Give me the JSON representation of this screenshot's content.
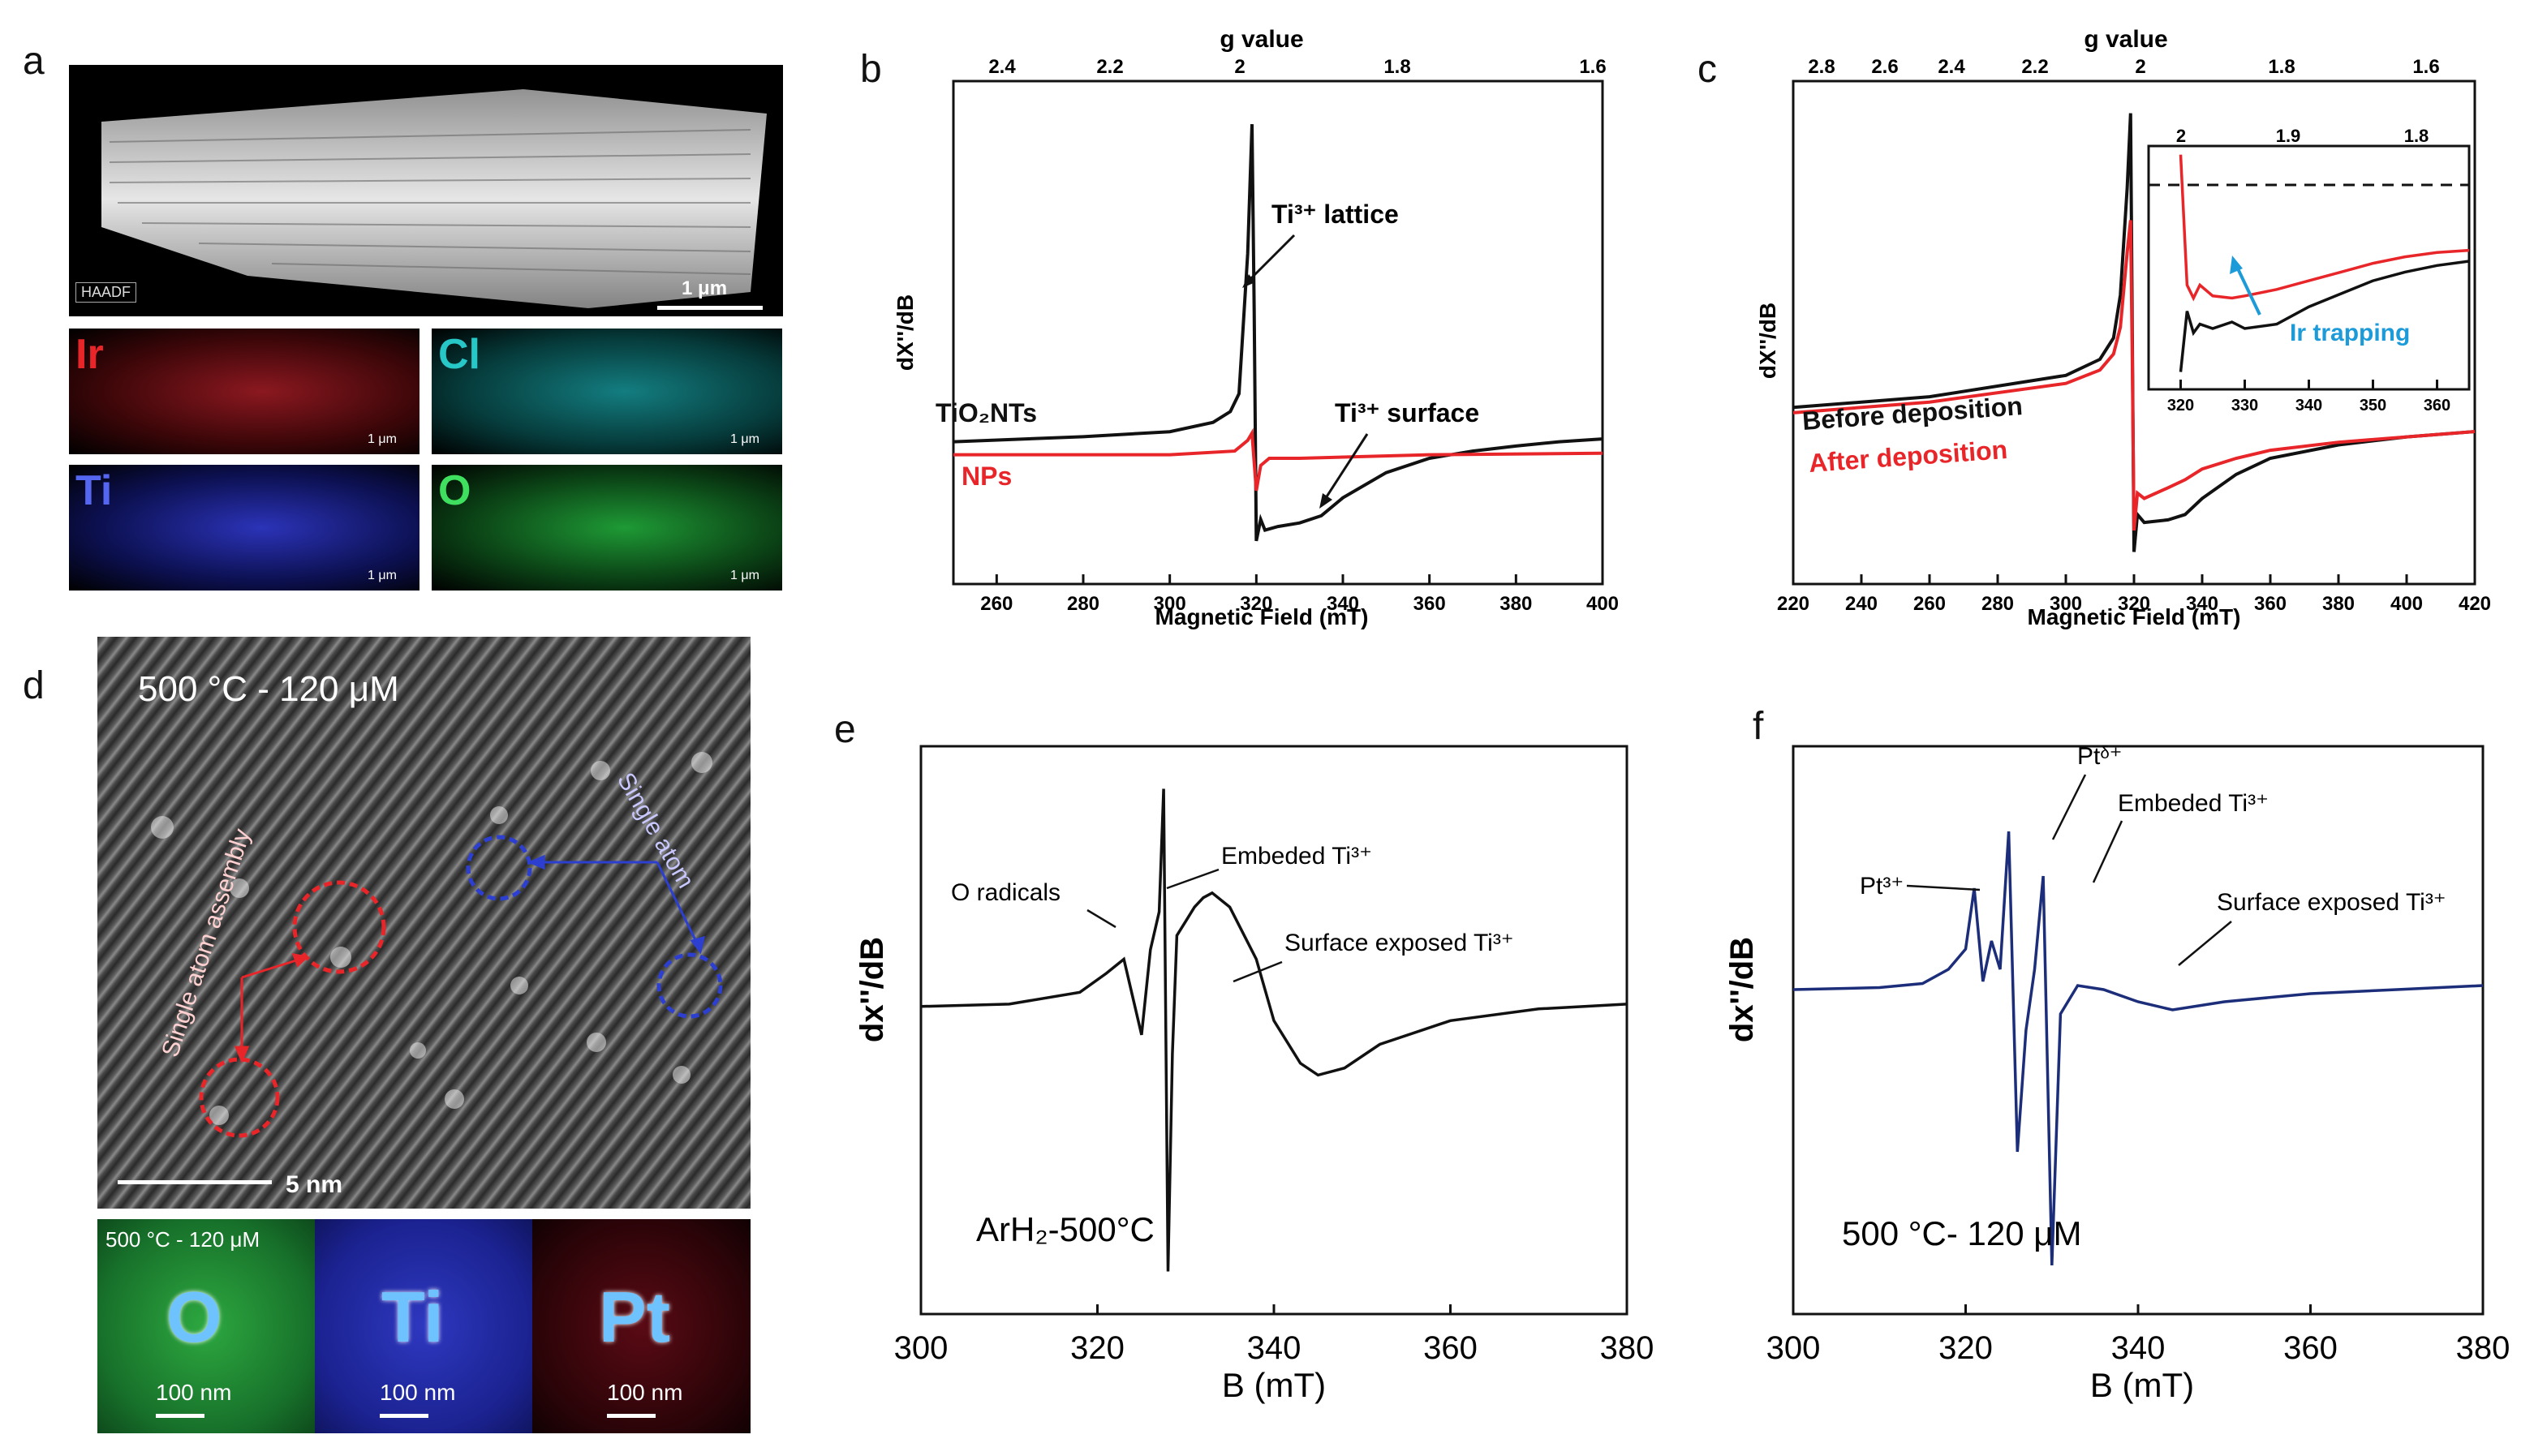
{
  "colors": {
    "black": "#111111",
    "red": "#e8262a",
    "blue_trace": "#1c2d7a",
    "cyan_text": "#1d9bd8",
    "green_map": "#1b8f33",
    "blue_map": "#1c27a6",
    "red_map": "#9b1020",
    "cyan_map": "#1aa8a8"
  },
  "panel_labels": {
    "a": "a",
    "b": "b",
    "c": "c",
    "d": "d",
    "e": "e",
    "f": "f"
  },
  "panel_a": {
    "haadf_tag": "HAADF",
    "scale": "1 μm",
    "maps": [
      {
        "element": "Ir",
        "scale": "1 μm",
        "color": "#e8262a"
      },
      {
        "element": "Cl",
        "scale": "1 μm",
        "color": "#27c7c7"
      },
      {
        "element": "Ti",
        "scale": "1 μm",
        "color": "#3b44e0"
      },
      {
        "element": "O",
        "scale": "1 μm",
        "color": "#22c03c"
      }
    ]
  },
  "panel_d": {
    "condition": "500 °C - 120 μM",
    "single_atom": "Single atom",
    "assembly": "Single atom assembly",
    "scale": "5 nm",
    "maps_condition": "500 °C - 120 μM",
    "maps": [
      {
        "element": "O",
        "scale": "100 nm"
      },
      {
        "element": "Ti",
        "scale": "100 nm"
      },
      {
        "element": "Pt",
        "scale": "100 nm"
      }
    ]
  },
  "chart_data": [
    {
      "panel": "b",
      "type": "line",
      "xlabel": "Magnetic Field (mT)",
      "ylabel": "dX''/dB",
      "top_axis_label": "g value",
      "xlim": [
        250,
        400
      ],
      "x_ticks": [
        260,
        280,
        300,
        320,
        340,
        360,
        380,
        400
      ],
      "g_ticks": [
        "2.4",
        "2.2",
        "2",
        "1.8",
        "1.6"
      ],
      "annotations": {
        "lattice": "Ti³⁺ lattice",
        "surface": "Ti³⁺ surface"
      },
      "series": [
        {
          "name": "TiO₂NTs",
          "color": "#111111",
          "x": [
            250,
            280,
            300,
            310,
            314,
            316,
            318,
            319,
            319.5,
            320,
            321,
            322,
            325,
            330,
            335,
            340,
            350,
            360,
            370,
            380,
            390,
            400
          ],
          "y": [
            0.18,
            0.25,
            0.32,
            0.45,
            0.6,
            0.85,
            2.8,
            4.6,
            2.0,
            -1.2,
            -0.9,
            -1.05,
            -1.0,
            -0.95,
            -0.85,
            -0.6,
            -0.25,
            -0.05,
            0.05,
            0.12,
            0.18,
            0.22
          ]
        },
        {
          "name": "NPs",
          "color": "#e8262a",
          "x": [
            250,
            300,
            315,
            318,
            319,
            320,
            321,
            323,
            330,
            360,
            400
          ],
          "y": [
            0.0,
            0.0,
            0.05,
            0.2,
            0.3,
            -0.5,
            -0.15,
            -0.05,
            -0.05,
            0.0,
            0.02
          ]
        }
      ]
    },
    {
      "panel": "c",
      "type": "line",
      "xlabel": "Magnetic Field (mT)",
      "ylabel": "dX''/dB",
      "top_axis_label": "g value",
      "xlim": [
        220,
        420
      ],
      "x_ticks": [
        220,
        240,
        260,
        280,
        300,
        320,
        340,
        360,
        380,
        400,
        420
      ],
      "g_ticks": [
        "2.8",
        "2.6",
        "2.4",
        "2.2",
        "2",
        "1.8",
        "1.6"
      ],
      "series": [
        {
          "name": "Before deposition",
          "color": "#111111",
          "x": [
            220,
            260,
            300,
            310,
            314,
            316,
            318,
            319,
            319.5,
            320,
            321,
            323,
            330,
            335,
            340,
            350,
            360,
            380,
            400,
            420
          ],
          "y": [
            0.1,
            0.3,
            0.7,
            1.0,
            1.4,
            2.2,
            4.2,
            5.6,
            1.5,
            -2.6,
            -1.9,
            -2.05,
            -2.0,
            -1.9,
            -1.6,
            -1.15,
            -0.85,
            -0.6,
            -0.45,
            -0.35
          ]
        },
        {
          "name": "After deposition",
          "color": "#e8262a",
          "x": [
            220,
            260,
            300,
            310,
            314,
            316,
            318,
            319,
            319.5,
            320,
            321,
            323,
            330,
            335,
            340,
            350,
            360,
            380,
            400,
            420
          ],
          "y": [
            0.0,
            0.2,
            0.55,
            0.8,
            1.1,
            1.6,
            3.0,
            3.6,
            1.0,
            -2.2,
            -1.5,
            -1.6,
            -1.4,
            -1.25,
            -1.05,
            -0.85,
            -0.7,
            -0.55,
            -0.45,
            -0.35
          ]
        }
      ],
      "inset": {
        "xlim": [
          315,
          365
        ],
        "x_ticks": [
          320,
          330,
          340,
          350,
          360
        ],
        "g_ticks": [
          "2",
          "1.9",
          "1.8"
        ],
        "annotation": "Ir trapping",
        "series": [
          {
            "name": "Before deposition",
            "color": "#111111",
            "x": [
              320,
              321,
              322,
              323,
              325,
              328,
              330,
              335,
              340,
              345,
              350,
              355,
              360,
              365
            ],
            "y": [
              -3.0,
              -1.6,
              -2.1,
              -1.9,
              -2.0,
              -1.85,
              -2.0,
              -1.9,
              -1.5,
              -1.2,
              -0.9,
              -0.7,
              -0.55,
              -0.45
            ]
          },
          {
            "name": "After deposition",
            "color": "#e8262a",
            "x": [
              320,
              321,
              322,
              323,
              325,
              328,
              330,
              335,
              340,
              345,
              350,
              355,
              360,
              365
            ],
            "y": [
              2.0,
              -1.0,
              -1.3,
              -1.0,
              -1.25,
              -1.3,
              -1.25,
              -1.1,
              -0.9,
              -0.7,
              -0.5,
              -0.35,
              -0.25,
              -0.2
            ]
          }
        ],
        "dashed_level": 0.6
      }
    },
    {
      "panel": "e",
      "type": "line",
      "xlabel": "B (mT)",
      "ylabel": "dx''/dB",
      "xlim": [
        300,
        380
      ],
      "x_ticks": [
        300,
        320,
        340,
        360,
        380
      ],
      "condition": "ArH₂-500°C",
      "annotations": {
        "o_radicals": "O radicals",
        "embedded": "Embeded Ti³⁺",
        "surface": "Surface exposed Ti³⁺"
      },
      "series": [
        {
          "name": "ArH2-500C",
          "color": "#111111",
          "x": [
            300,
            310,
            318,
            321,
            323,
            324,
            325,
            326,
            327,
            327.5,
            328,
            328.5,
            329,
            330,
            331,
            332,
            333,
            335,
            338,
            340,
            343,
            345,
            348,
            352,
            360,
            370,
            380
          ],
          "y": [
            0.0,
            0.05,
            0.3,
            0.7,
            1.0,
            0.2,
            -0.6,
            1.2,
            2.0,
            4.6,
            -5.6,
            -1.0,
            1.5,
            1.8,
            2.1,
            2.3,
            2.4,
            2.1,
            1.0,
            -0.3,
            -1.2,
            -1.45,
            -1.3,
            -0.8,
            -0.3,
            -0.05,
            0.05
          ]
        }
      ]
    },
    {
      "panel": "f",
      "type": "line",
      "xlabel": "B (mT)",
      "ylabel": "dx''/dB",
      "xlim": [
        300,
        380
      ],
      "x_ticks": [
        300,
        320,
        340,
        360,
        380
      ],
      "condition": "500 °C- 120 μM",
      "annotations": {
        "pt_delta": "Ptᵟ⁺",
        "pt3": "Pt³⁺",
        "embedded": "Embeded Ti³⁺",
        "surface": "Surface exposed Ti³⁺"
      },
      "series": [
        {
          "name": "500C-120uM",
          "color": "#1c2d7a",
          "x": [
            300,
            310,
            315,
            318,
            320,
            321,
            322,
            323,
            324,
            325,
            326,
            327,
            328,
            329,
            330,
            331,
            333,
            336,
            340,
            344,
            350,
            360,
            370,
            380
          ],
          "y": [
            0.0,
            0.05,
            0.15,
            0.5,
            1.0,
            2.5,
            0.2,
            1.2,
            0.5,
            3.9,
            -4.0,
            -1.0,
            0.5,
            2.8,
            -6.8,
            -0.6,
            0.1,
            0.0,
            -0.3,
            -0.5,
            -0.3,
            -0.1,
            0.0,
            0.1
          ]
        }
      ]
    }
  ]
}
